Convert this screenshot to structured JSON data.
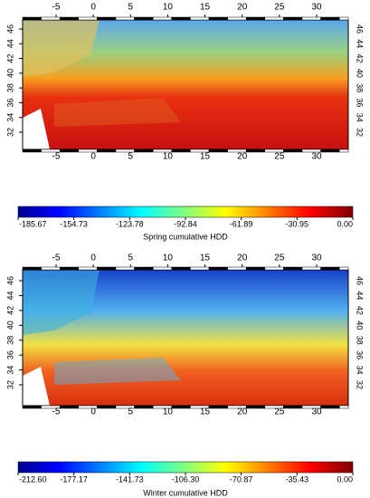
{
  "panels": [
    {
      "lon_ticks": [
        -5,
        0,
        5,
        10,
        15,
        20,
        25,
        30
      ],
      "lat_ticks": [
        32,
        34,
        36,
        38,
        40,
        42,
        44,
        46
      ],
      "colorbar": {
        "label": "Spring cumulative HDD",
        "lim": [
          -185.67,
          0
        ],
        "ticks": [
          -185.67,
          -154.73,
          -123.78,
          -92.84,
          -61.89,
          -30.95,
          {
            "value": 0,
            "label": "0.00"
          }
        ]
      }
    },
    {
      "lon_ticks": [
        -5,
        0,
        5,
        10,
        15,
        20,
        25,
        30
      ],
      "lat_ticks": [
        32,
        34,
        36,
        38,
        40,
        42,
        44,
        46
      ],
      "colorbar": {
        "label": "Winter cumulative HDD",
        "lim": [
          -212.6,
          0
        ],
        "ticks": [
          {
            "value": -212.6,
            "label": "-212.60"
          },
          -177.17,
          -141.73,
          {
            "value": -106.3,
            "label": "-106.30"
          },
          -70.87,
          -35.43,
          {
            "value": 0,
            "label": "0.00"
          }
        ]
      }
    }
  ]
}
